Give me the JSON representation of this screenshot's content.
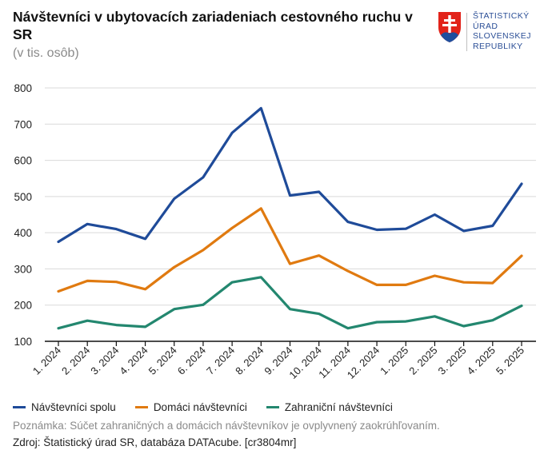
{
  "header": {
    "title": "Návštevníci v ubytovacích zariadeniach cestovného ruchu v SR",
    "subtitle": "(v tis. osôb)"
  },
  "logo": {
    "lines": [
      "ŠTATISTICKÝ",
      "ÚRAD",
      "SLOVENSKEJ",
      "REPUBLIKY"
    ],
    "colors": {
      "red": "#e2231a",
      "blue": "#1f4f9e",
      "white": "#ffffff"
    }
  },
  "footer": {
    "note": "Poznámka: Súčet zahraničných a domácich návštevníkov je ovplyvnený zaokrúhľovaním.",
    "source": "Zdroj: Štatistický úrad SR, databáza DATAcube. [cr3804mr]"
  },
  "chart_data": {
    "type": "line",
    "categories": [
      "1. 2024",
      "2. 2024",
      "3. 2024",
      "4. 2024",
      "5. 2024",
      "6. 2024",
      "7. 2024",
      "8. 2024",
      "9. 2024",
      "10. 2024",
      "11. 2024",
      "12. 2024",
      "1. 2025",
      "2. 2025",
      "3. 2025",
      "4. 2025",
      "5. 2025"
    ],
    "ylim": [
      100,
      800
    ],
    "yticks": [
      100,
      200,
      300,
      400,
      500,
      600,
      700,
      800
    ],
    "grid": true,
    "legend_position": "bottom",
    "series": [
      {
        "name": "Návštevníci spolu",
        "color": "#1f4b99",
        "values": [
          375,
          424,
          410,
          383,
          494,
          553,
          676,
          744,
          503,
          513,
          430,
          408,
          411,
          450,
          405,
          419,
          535
        ]
      },
      {
        "name": "Domáci návštevníci",
        "color": "#e07a10",
        "values": [
          238,
          267,
          264,
          244,
          305,
          352,
          413,
          467,
          314,
          337,
          294,
          256,
          256,
          281,
          263,
          261,
          336
        ]
      },
      {
        "name": "Zahraniční návštevníci",
        "color": "#23876f",
        "values": [
          136,
          157,
          145,
          140,
          189,
          201,
          263,
          277,
          189,
          176,
          136,
          153,
          155,
          169,
          142,
          158,
          198
        ]
      }
    ]
  }
}
